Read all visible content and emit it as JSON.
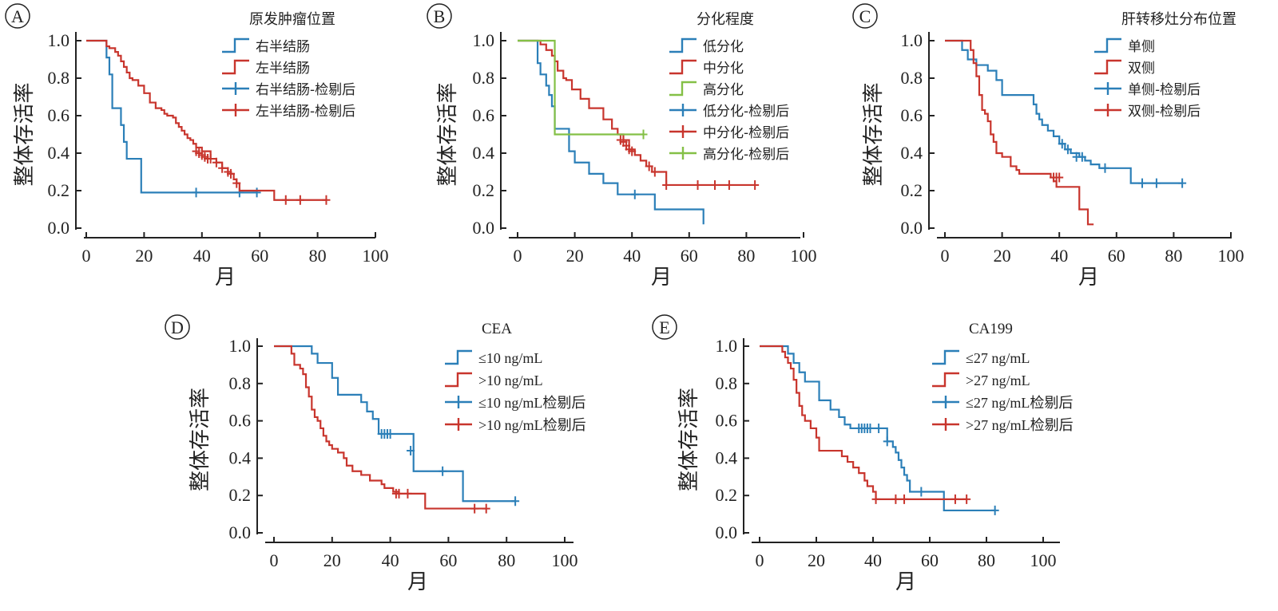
{
  "colors": {
    "blue": "#2b7fb8",
    "red": "#c8352d",
    "green": "#84c046",
    "axis": "#222222"
  },
  "chart_data": [
    {
      "type": "line",
      "panel": "A",
      "legend_title": "原发肿瘤位置",
      "xlabel": "月",
      "ylabel": "整体存活率",
      "xlim": [
        0,
        100
      ],
      "ylim": [
        0,
        1
      ],
      "xticks": [
        "0",
        "20",
        "40",
        "60",
        "80",
        "100"
      ],
      "yticks": [
        "0.0",
        "0.2",
        "0.4",
        "0.6",
        "0.8",
        "1.0"
      ],
      "legend_position": "top-right",
      "legend": [
        "右半结肠",
        "左半结肠",
        "右半结肠-检剔后",
        "左半结肠-检剔后"
      ],
      "series": [
        {
          "name": "右半结肠",
          "color": "#2b7fb8",
          "x": [
            0,
            6,
            7,
            8,
            9,
            10,
            12,
            13,
            14,
            19,
            59
          ],
          "y": [
            1.0,
            1.0,
            0.91,
            0.82,
            0.64,
            0.64,
            0.55,
            0.46,
            0.37,
            0.19,
            0.19
          ],
          "censored": [
            [
              38,
              0.19
            ],
            [
              53,
              0.19
            ],
            [
              59,
              0.19
            ]
          ]
        },
        {
          "name": "左半结肠",
          "color": "#c8352d",
          "x": [
            0,
            6,
            7,
            8,
            10,
            11,
            12,
            13,
            14,
            15,
            16,
            18,
            20,
            22,
            24,
            26,
            27,
            28,
            30,
            31,
            32,
            33,
            34,
            35,
            36,
            37,
            38,
            40,
            43,
            45,
            47,
            49,
            50,
            51,
            52,
            53,
            65,
            83
          ],
          "y": [
            1.0,
            1.0,
            0.97,
            0.96,
            0.94,
            0.92,
            0.89,
            0.86,
            0.83,
            0.8,
            0.79,
            0.76,
            0.72,
            0.67,
            0.64,
            0.63,
            0.61,
            0.6,
            0.59,
            0.56,
            0.54,
            0.52,
            0.5,
            0.48,
            0.47,
            0.45,
            0.43,
            0.41,
            0.37,
            0.35,
            0.32,
            0.3,
            0.29,
            0.26,
            0.24,
            0.2,
            0.15,
            0.15
          ],
          "censored": [
            [
              38,
              0.41
            ],
            [
              39,
              0.4
            ],
            [
              40,
              0.39
            ],
            [
              41,
              0.38
            ],
            [
              42,
              0.37
            ],
            [
              43,
              0.37
            ],
            [
              45,
              0.35
            ],
            [
              47,
              0.32
            ],
            [
              49,
              0.3
            ],
            [
              50,
              0.29
            ],
            [
              52,
              0.24
            ],
            [
              69,
              0.15
            ],
            [
              74,
              0.15
            ],
            [
              83,
              0.15
            ]
          ]
        }
      ]
    },
    {
      "type": "line",
      "panel": "B",
      "legend_title": "分化程度",
      "xlabel": "月",
      "ylabel": "整体存活率",
      "xlim": [
        0,
        100
      ],
      "ylim": [
        0,
        1
      ],
      "xticks": [
        "0",
        "20",
        "40",
        "60",
        "80",
        "100"
      ],
      "yticks": [
        "0.0",
        "0.2",
        "0.4",
        "0.6",
        "0.8",
        "1.0"
      ],
      "legend_position": "top-right",
      "legend": [
        "低分化",
        "中分化",
        "高分化",
        "低分化-检剔后",
        "中分化-检剔后",
        "高分化-检剔后"
      ],
      "series": [
        {
          "name": "低分化",
          "color": "#2b7fb8",
          "x": [
            0,
            6,
            7,
            8,
            10,
            11,
            12,
            13,
            17,
            18,
            20,
            25,
            30,
            35,
            41,
            48,
            65
          ],
          "y": [
            1.0,
            1.0,
            0.88,
            0.82,
            0.76,
            0.71,
            0.65,
            0.53,
            0.53,
            0.41,
            0.35,
            0.29,
            0.24,
            0.18,
            0.18,
            0.1,
            0.02
          ],
          "censored": [
            [
              41,
              0.18
            ]
          ]
        },
        {
          "name": "中分化",
          "color": "#c8352d",
          "x": [
            0,
            6,
            8,
            10,
            12,
            13,
            14,
            16,
            17,
            19,
            22,
            25,
            30,
            33,
            35,
            37,
            39,
            41,
            43,
            45,
            47,
            52,
            83
          ],
          "y": [
            1.0,
            1.0,
            0.98,
            0.95,
            0.92,
            0.89,
            0.84,
            0.8,
            0.79,
            0.74,
            0.69,
            0.64,
            0.58,
            0.53,
            0.5,
            0.47,
            0.42,
            0.39,
            0.36,
            0.33,
            0.3,
            0.23,
            0.23
          ],
          "censored": [
            [
              36,
              0.47
            ],
            [
              37,
              0.46
            ],
            [
              38,
              0.44
            ],
            [
              39,
              0.42
            ],
            [
              40,
              0.41
            ],
            [
              46,
              0.33
            ],
            [
              48,
              0.3
            ],
            [
              52,
              0.23
            ],
            [
              63,
              0.23
            ],
            [
              69,
              0.23
            ],
            [
              74,
              0.23
            ],
            [
              83,
              0.23
            ]
          ]
        },
        {
          "name": "高分化",
          "color": "#84c046",
          "x": [
            0,
            12,
            13,
            44
          ],
          "y": [
            1.0,
            1.0,
            0.5,
            0.5
          ],
          "censored": [
            [
              44,
              0.5
            ]
          ]
        }
      ]
    },
    {
      "type": "line",
      "panel": "C",
      "legend_title": "肝转移灶分布位置",
      "xlabel": "月",
      "ylabel": "整体存活率",
      "xlim": [
        0,
        100
      ],
      "ylim": [
        0,
        1
      ],
      "xticks": [
        "0",
        "20",
        "40",
        "60",
        "80",
        "100"
      ],
      "yticks": [
        "0.0",
        "0.2",
        "0.4",
        "0.6",
        "0.8",
        "1.0"
      ],
      "legend_position": "top-right",
      "legend": [
        "单侧",
        "双侧",
        "单侧-检剔后",
        "双侧-检剔后"
      ],
      "series": [
        {
          "name": "单侧",
          "color": "#2b7fb8",
          "x": [
            0,
            5,
            6,
            8,
            11,
            15,
            18,
            20,
            30,
            31,
            32,
            33,
            34,
            36,
            38,
            40,
            42,
            44,
            47,
            49,
            51,
            54,
            65,
            83
          ],
          "y": [
            1.0,
            1.0,
            0.95,
            0.9,
            0.87,
            0.84,
            0.79,
            0.71,
            0.71,
            0.66,
            0.61,
            0.58,
            0.55,
            0.52,
            0.49,
            0.45,
            0.42,
            0.4,
            0.38,
            0.36,
            0.34,
            0.32,
            0.24,
            0.24
          ],
          "censored": [
            [
              41,
              0.45
            ],
            [
              43,
              0.42
            ],
            [
              46,
              0.38
            ],
            [
              48,
              0.38
            ],
            [
              56,
              0.32
            ],
            [
              69,
              0.24
            ],
            [
              74,
              0.24
            ],
            [
              83,
              0.24
            ]
          ]
        },
        {
          "name": "双侧",
          "color": "#c8352d",
          "x": [
            0,
            6,
            9,
            10,
            11,
            12,
            13,
            14,
            15,
            16,
            17,
            18,
            20,
            23,
            25,
            26,
            30,
            37,
            38,
            39,
            47,
            50,
            52
          ],
          "y": [
            1.0,
            1.0,
            0.95,
            0.88,
            0.81,
            0.71,
            0.63,
            0.61,
            0.57,
            0.5,
            0.46,
            0.4,
            0.38,
            0.33,
            0.31,
            0.29,
            0.29,
            0.27,
            0.25,
            0.22,
            0.1,
            0.02,
            0.02
          ],
          "censored": [
            [
              38,
              0.27
            ],
            [
              39,
              0.27
            ],
            [
              40,
              0.27
            ]
          ]
        }
      ]
    },
    {
      "type": "line",
      "panel": "D",
      "legend_title": "CEA",
      "xlabel": "月",
      "ylabel": "整体存活率",
      "xlim": [
        0,
        100
      ],
      "ylim": [
        0,
        1
      ],
      "xticks": [
        "0",
        "20",
        "40",
        "60",
        "80",
        "100"
      ],
      "yticks": [
        "0.0",
        "0.2",
        "0.4",
        "0.6",
        "0.8",
        "1.0"
      ],
      "legend_position": "top-right",
      "legend": [
        "≤10 ng/mL",
        ">10 ng/mL",
        "≤10 ng/mL检剔后",
        ">10 ng/mL检剔后"
      ],
      "series": [
        {
          "name": "≤10 ng/mL",
          "color": "#2b7fb8",
          "x": [
            0,
            11,
            13,
            15,
            20,
            22,
            28,
            30,
            32,
            34,
            36,
            47,
            48,
            65,
            83
          ],
          "y": [
            1.0,
            1.0,
            0.96,
            0.91,
            0.83,
            0.74,
            0.74,
            0.7,
            0.65,
            0.61,
            0.53,
            0.53,
            0.33,
            0.17,
            0.17
          ],
          "censored": [
            [
              37,
              0.53
            ],
            [
              38,
              0.53
            ],
            [
              39,
              0.53
            ],
            [
              40,
              0.53
            ],
            [
              47,
              0.44
            ],
            [
              58,
              0.33
            ],
            [
              83,
              0.17
            ]
          ]
        },
        {
          "name": ">10 ng/mL",
          "color": "#c8352d",
          "x": [
            0,
            5,
            6,
            7,
            9,
            10,
            11,
            12,
            13,
            14,
            15,
            16,
            17,
            18,
            19,
            20,
            22,
            24,
            25,
            27,
            30,
            33,
            37,
            38,
            41,
            43,
            45,
            52,
            73
          ],
          "y": [
            1.0,
            1.0,
            0.96,
            0.9,
            0.88,
            0.85,
            0.78,
            0.73,
            0.66,
            0.62,
            0.6,
            0.56,
            0.52,
            0.49,
            0.47,
            0.45,
            0.43,
            0.4,
            0.36,
            0.33,
            0.31,
            0.28,
            0.26,
            0.24,
            0.22,
            0.21,
            0.21,
            0.13,
            0.13
          ],
          "censored": [
            [
              42,
              0.21
            ],
            [
              43,
              0.21
            ],
            [
              46,
              0.21
            ],
            [
              69,
              0.13
            ],
            [
              73,
              0.13
            ]
          ]
        }
      ]
    },
    {
      "type": "line",
      "panel": "E",
      "legend_title": "CA199",
      "xlabel": "月",
      "ylabel": "整体存活率",
      "xlim": [
        0,
        100
      ],
      "ylim": [
        0,
        1
      ],
      "xticks": [
        "0",
        "20",
        "40",
        "60",
        "80",
        "100"
      ],
      "yticks": [
        "0.0",
        "0.2",
        "0.4",
        "0.6",
        "0.8",
        "1.0"
      ],
      "legend_position": "top-right",
      "legend": [
        "≤27 ng/mL",
        ">27 ng/mL",
        "≤27 ng/mL检剔后",
        ">27 ng/mL检剔后"
      ],
      "series": [
        {
          "name": "≤27 ng/mL",
          "color": "#2b7fb8",
          "x": [
            0,
            7,
            10,
            12,
            14,
            16,
            21,
            25,
            28,
            30,
            32,
            33,
            34,
            45,
            47,
            48,
            49,
            50,
            51,
            52,
            53,
            65,
            83
          ],
          "y": [
            1.0,
            1.0,
            0.96,
            0.91,
            0.86,
            0.81,
            0.71,
            0.66,
            0.62,
            0.58,
            0.56,
            0.56,
            0.56,
            0.49,
            0.46,
            0.43,
            0.39,
            0.35,
            0.31,
            0.28,
            0.22,
            0.12,
            0.12
          ],
          "censored": [
            [
              35,
              0.56
            ],
            [
              36,
              0.56
            ],
            [
              37,
              0.56
            ],
            [
              38,
              0.56
            ],
            [
              39,
              0.56
            ],
            [
              42,
              0.56
            ],
            [
              45,
              0.49
            ],
            [
              57,
              0.22
            ],
            [
              83,
              0.12
            ]
          ]
        },
        {
          "name": ">27 ng/mL",
          "color": "#c8352d",
          "x": [
            0,
            6,
            8,
            9,
            10,
            11,
            12,
            13,
            14,
            15,
            16,
            18,
            20,
            21,
            27,
            29,
            31,
            33,
            35,
            37,
            38,
            40,
            41,
            73
          ],
          "y": [
            1.0,
            1.0,
            0.97,
            0.94,
            0.91,
            0.88,
            0.82,
            0.75,
            0.68,
            0.63,
            0.6,
            0.56,
            0.51,
            0.44,
            0.44,
            0.41,
            0.38,
            0.35,
            0.32,
            0.28,
            0.25,
            0.22,
            0.18,
            0.18
          ],
          "censored": [
            [
              41,
              0.18
            ],
            [
              48,
              0.18
            ],
            [
              51,
              0.18
            ],
            [
              69,
              0.18
            ],
            [
              73,
              0.18
            ]
          ]
        }
      ]
    }
  ]
}
